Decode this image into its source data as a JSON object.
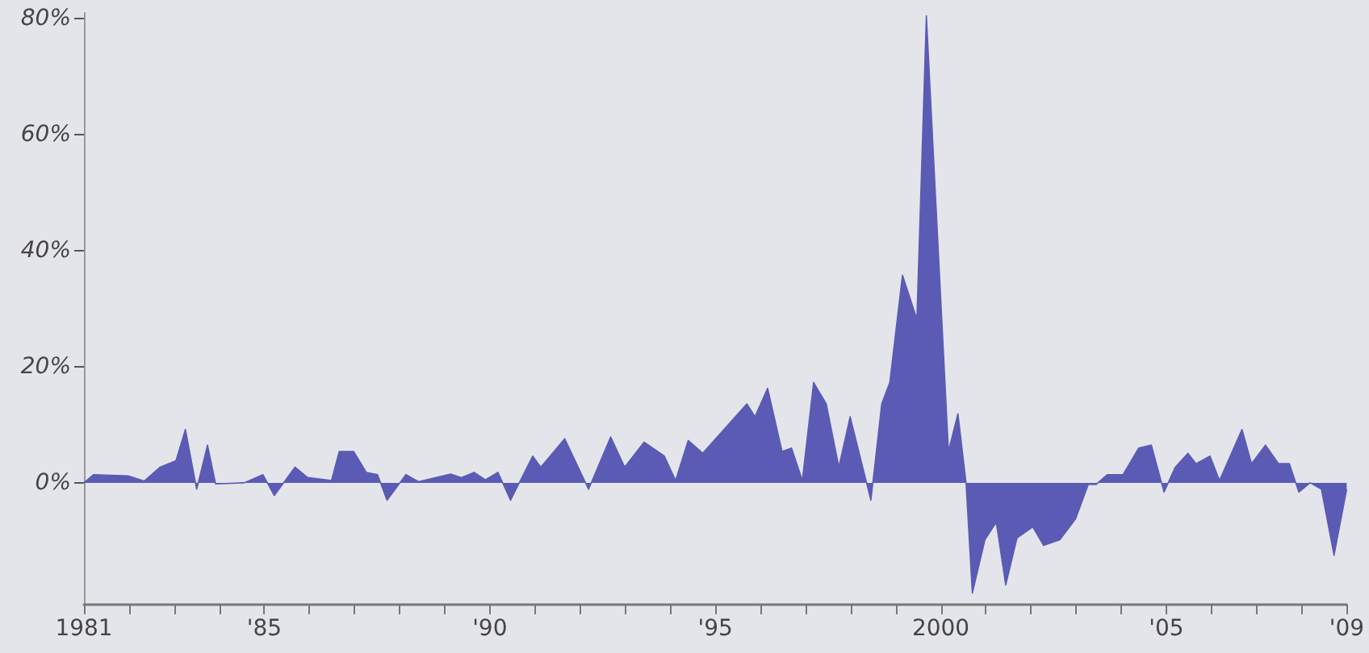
{
  "chart_data": {
    "type": "area",
    "x": [
      1981.0,
      1981.21,
      1981.98,
      1982.34,
      1982.69,
      1983.04,
      1983.25,
      1983.5,
      1983.74,
      1983.92,
      1984.55,
      1984.97,
      1985.22,
      1985.68,
      1985.96,
      1986.49,
      1986.66,
      1986.98,
      1987.26,
      1987.51,
      1987.72,
      1988.14,
      1988.42,
      1989.13,
      1989.37,
      1989.65,
      1989.9,
      1990.18,
      1990.46,
      1990.95,
      1991.13,
      1991.66,
      1992.19,
      1992.68,
      1992.99,
      1993.42,
      1993.87,
      1994.12,
      1994.4,
      1994.72,
      1995.7,
      1995.88,
      1996.16,
      1996.48,
      1996.69,
      1996.93,
      1997.18,
      1997.46,
      1997.74,
      1997.99,
      1998.45,
      1998.69,
      1998.87,
      1999.15,
      1999.47,
      1999.68,
      2000.17,
      2000.38,
      2000.56,
      2000.7,
      2000.98,
      2001.23,
      2001.44,
      2001.69,
      2002.04,
      2002.28,
      2002.64,
      2002.99,
      2003.27,
      2003.44,
      2003.69,
      2004.04,
      2004.39,
      2004.67,
      2004.95,
      2005.2,
      2005.48,
      2005.66,
      2005.97,
      2006.18,
      2006.68,
      2006.89,
      2007.2,
      2007.49,
      2007.73,
      2007.94,
      2008.19,
      2008.44,
      2008.72,
      2009.0
    ],
    "series": [
      {
        "color": "#5b5bb5",
        "values": [
          0,
          1.4,
          1.2,
          0.3,
          2.7,
          3.8,
          9.2,
          -1.1,
          6.5,
          -0.2,
          0,
          1.4,
          -2.2,
          2.7,
          0.9,
          0.4,
          5.4,
          5.4,
          1.8,
          1.4,
          -3,
          1.4,
          0.2,
          1.5,
          0.9,
          1.8,
          0.5,
          1.8,
          -3,
          4.6,
          2.7,
          7.6,
          -1.1,
          7.9,
          2.7,
          7,
          4.6,
          0.4,
          7.3,
          5.1,
          13.6,
          11.4,
          16.3,
          5.4,
          6.0,
          0.4,
          17.3,
          13.6,
          2.7,
          11.4,
          -3.0,
          13.6,
          17.3,
          35.8,
          28.2,
          80.5,
          5.4,
          11.9,
          0,
          -19,
          -9.8,
          -6.8,
          -17.6,
          -9.5,
          -7.6,
          -10.8,
          -9.8,
          -6.2,
          -0.3,
          -0.3,
          1.4,
          1.4,
          6.0,
          6.5,
          -1.6,
          2.7,
          5.1,
          3.3,
          4.6,
          0.4,
          9.2,
          3.3,
          6.5,
          3.3,
          3.3,
          -1.6,
          0,
          -1.1,
          -12.5,
          -1.1
        ]
      }
    ],
    "ylim": [
      -21,
      81
    ],
    "yticks": [
      {
        "value": 0,
        "label": "0%"
      },
      {
        "value": 20,
        "label": "20%"
      },
      {
        "value": 40,
        "label": "40%"
      },
      {
        "value": 60,
        "label": "60%"
      },
      {
        "value": 80,
        "label": "80%"
      }
    ],
    "xlim": [
      1981,
      2009
    ],
    "xticks": [
      {
        "value": 1981,
        "label": "1981"
      },
      {
        "value": 1982,
        "label": null
      },
      {
        "value": 1983,
        "label": null
      },
      {
        "value": 1984,
        "label": null
      },
      {
        "value": 1985,
        "label": "'85"
      },
      {
        "value": 1986,
        "label": null
      },
      {
        "value": 1987,
        "label": null
      },
      {
        "value": 1988,
        "label": null
      },
      {
        "value": 1989,
        "label": null
      },
      {
        "value": 1990,
        "label": "'90"
      },
      {
        "value": 1991,
        "label": null
      },
      {
        "value": 1992,
        "label": null
      },
      {
        "value": 1993,
        "label": null
      },
      {
        "value": 1994,
        "label": null
      },
      {
        "value": 1995,
        "label": "'95"
      },
      {
        "value": 1996,
        "label": null
      },
      {
        "value": 1997,
        "label": null
      },
      {
        "value": 1998,
        "label": null
      },
      {
        "value": 1999,
        "label": null
      },
      {
        "value": 2000,
        "label": "2000"
      },
      {
        "value": 2001,
        "label": null
      },
      {
        "value": 2002,
        "label": null
      },
      {
        "value": 2003,
        "label": null
      },
      {
        "value": 2004,
        "label": null
      },
      {
        "value": 2005,
        "label": "'05"
      },
      {
        "value": 2006,
        "label": null
      },
      {
        "value": 2007,
        "label": null
      },
      {
        "value": 2008,
        "label": null
      },
      {
        "value": 2009,
        "label": "'09"
      }
    ],
    "marker": "none"
  }
}
